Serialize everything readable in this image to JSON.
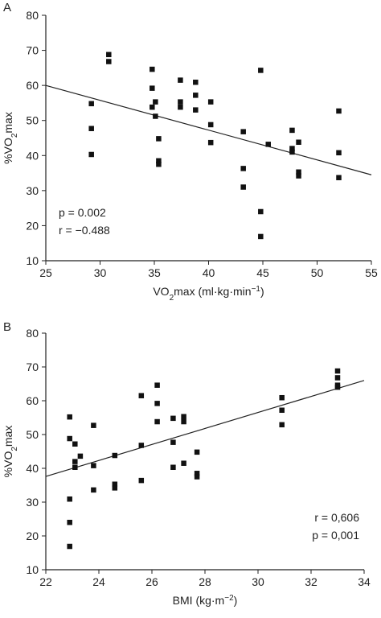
{
  "chart_data": [
    {
      "type": "scatter",
      "panel_label": "A",
      "title": "",
      "xlabel": "VO₂max (ml·kg·min⁻¹)",
      "xlabel_parts": [
        "VO",
        "2",
        "max (ml·kg·min",
        "−1",
        ")"
      ],
      "ylabel": "%VO₂max",
      "ylabel_parts": [
        "%VO",
        "2",
        "max"
      ],
      "xlim": [
        25,
        55
      ],
      "ylim": [
        10,
        80
      ],
      "xticks": [
        "25",
        "30",
        "35",
        "40",
        "45",
        "50",
        "55"
      ],
      "yticks": [
        "10",
        "20",
        "30",
        "40",
        "50",
        "60",
        "70",
        "80"
      ],
      "grid": false,
      "annotations": [
        "p = 0.002",
        "r = −0.488"
      ],
      "annotation_position": "bottom-left",
      "regression_line": {
        "x": [
          25,
          55
        ],
        "y": [
          60,
          34.5
        ]
      },
      "points": [
        {
          "x": 29.2,
          "y": 54.8
        },
        {
          "x": 29.2,
          "y": 47.7
        },
        {
          "x": 29.2,
          "y": 40.3
        },
        {
          "x": 30.8,
          "y": 68.8
        },
        {
          "x": 30.8,
          "y": 66.8
        },
        {
          "x": 34.8,
          "y": 64.6
        },
        {
          "x": 34.8,
          "y": 59.2
        },
        {
          "x": 34.8,
          "y": 53.8
        },
        {
          "x": 35.1,
          "y": 55.3
        },
        {
          "x": 35.1,
          "y": 51.2
        },
        {
          "x": 35.4,
          "y": 44.8
        },
        {
          "x": 35.4,
          "y": 38.5
        },
        {
          "x": 35.4,
          "y": 37.5
        },
        {
          "x": 37.4,
          "y": 61.5
        },
        {
          "x": 37.4,
          "y": 55.3
        },
        {
          "x": 37.4,
          "y": 53.8
        },
        {
          "x": 38.8,
          "y": 60.9
        },
        {
          "x": 38.8,
          "y": 57.2
        },
        {
          "x": 38.8,
          "y": 53
        },
        {
          "x": 40.2,
          "y": 55.3
        },
        {
          "x": 40.2,
          "y": 48.8
        },
        {
          "x": 40.2,
          "y": 43.7
        },
        {
          "x": 43.2,
          "y": 46.8
        },
        {
          "x": 43.2,
          "y": 36.3
        },
        {
          "x": 43.2,
          "y": 31
        },
        {
          "x": 44.8,
          "y": 64.3
        },
        {
          "x": 44.8,
          "y": 24
        },
        {
          "x": 44.8,
          "y": 16.9
        },
        {
          "x": 45.5,
          "y": 43.2
        },
        {
          "x": 47.7,
          "y": 47.2
        },
        {
          "x": 47.7,
          "y": 42
        },
        {
          "x": 47.7,
          "y": 41
        },
        {
          "x": 48.3,
          "y": 43.8
        },
        {
          "x": 48.3,
          "y": 35.3
        },
        {
          "x": 48.3,
          "y": 34.2
        },
        {
          "x": 52,
          "y": 52.7
        },
        {
          "x": 52,
          "y": 40.8
        },
        {
          "x": 52,
          "y": 33.7
        }
      ]
    },
    {
      "type": "scatter",
      "panel_label": "B",
      "title": "",
      "xlabel": "BMI (kg·m⁻²)",
      "xlabel_parts": [
        "BMI (kg·m",
        "−2",
        ")"
      ],
      "ylabel": "%VO₂max",
      "ylabel_parts": [
        "%VO",
        "2",
        "max"
      ],
      "xlim": [
        22,
        34
      ],
      "ylim": [
        10,
        80
      ],
      "xticks": [
        "22",
        "24",
        "26",
        "28",
        "30",
        "32",
        "34"
      ],
      "yticks": [
        "10",
        "20",
        "30",
        "40",
        "50",
        "60",
        "70",
        "80"
      ],
      "grid": false,
      "annotations": [
        "r = 0,606",
        "p = 0,001"
      ],
      "annotation_position": "bottom-right",
      "regression_line": {
        "x": [
          22,
          34
        ],
        "y": [
          37.6,
          66
        ]
      },
      "points": [
        {
          "x": 22.9,
          "y": 55.2
        },
        {
          "x": 22.9,
          "y": 48.8
        },
        {
          "x": 22.9,
          "y": 30.9
        },
        {
          "x": 22.9,
          "y": 24
        },
        {
          "x": 22.9,
          "y": 16.9
        },
        {
          "x": 23.1,
          "y": 47.2
        },
        {
          "x": 23.1,
          "y": 42
        },
        {
          "x": 23.1,
          "y": 40.3
        },
        {
          "x": 23.3,
          "y": 43.6
        },
        {
          "x": 23.8,
          "y": 52.7
        },
        {
          "x": 23.8,
          "y": 40.8
        },
        {
          "x": 23.8,
          "y": 33.6
        },
        {
          "x": 24.6,
          "y": 43.8
        },
        {
          "x": 24.6,
          "y": 35.3
        },
        {
          "x": 24.6,
          "y": 34.2
        },
        {
          "x": 25.6,
          "y": 61.5
        },
        {
          "x": 25.6,
          "y": 46.8
        },
        {
          "x": 25.6,
          "y": 36.4
        },
        {
          "x": 26.2,
          "y": 64.6
        },
        {
          "x": 26.2,
          "y": 59.2
        },
        {
          "x": 26.2,
          "y": 53.8
        },
        {
          "x": 26.8,
          "y": 54.8
        },
        {
          "x": 26.8,
          "y": 47.7
        },
        {
          "x": 26.8,
          "y": 40.3
        },
        {
          "x": 27.2,
          "y": 55.3
        },
        {
          "x": 27.2,
          "y": 53.8
        },
        {
          "x": 27.2,
          "y": 41.5
        },
        {
          "x": 27.7,
          "y": 44.8
        },
        {
          "x": 27.7,
          "y": 38.5
        },
        {
          "x": 27.7,
          "y": 37.5
        },
        {
          "x": 30.9,
          "y": 60.9
        },
        {
          "x": 30.9,
          "y": 57.2
        },
        {
          "x": 30.9,
          "y": 52.9
        },
        {
          "x": 33,
          "y": 68.8
        },
        {
          "x": 33,
          "y": 66.8
        },
        {
          "x": 33,
          "y": 64.6
        },
        {
          "x": 33,
          "y": 64
        }
      ]
    }
  ]
}
